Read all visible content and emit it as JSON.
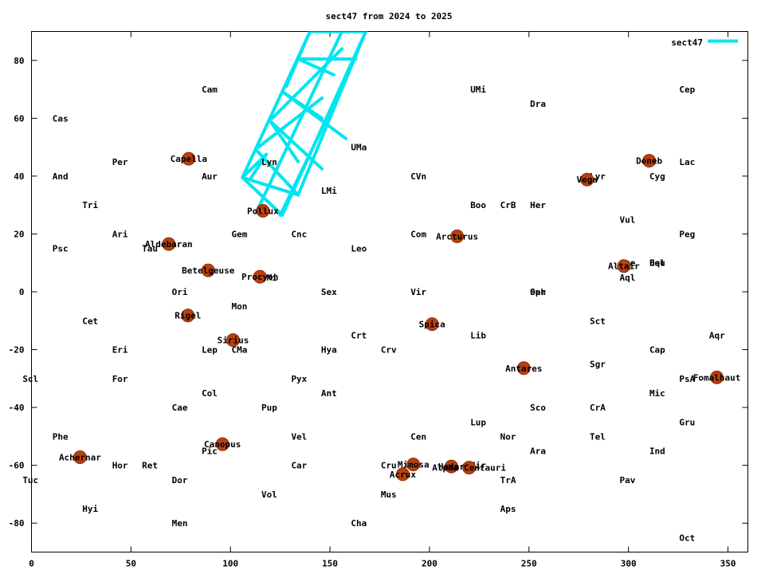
{
  "chart_data": {
    "type": "scatter",
    "title": "sect47 from 2024 to 2025",
    "xlim": [
      0,
      360
    ],
    "ylim": [
      -90,
      90
    ],
    "xticks": [
      0,
      50,
      100,
      150,
      200,
      250,
      300,
      350
    ],
    "yticks": [
      -80,
      -60,
      -40,
      -20,
      0,
      20,
      40,
      60,
      80
    ],
    "grid": false,
    "legend": {
      "position": "top-right",
      "label": "sect47",
      "color": "#00e5ee"
    },
    "series_color": "#00e5ee",
    "star_color": "#b8400e",
    "sect47_path": [
      {
        "x": 106.0,
        "y": 39.5
      },
      {
        "x": 140.0,
        "y": 90.0
      },
      {
        "x": 154.0,
        "y": 90.0
      },
      {
        "x": 168.0,
        "y": 90.0
      },
      {
        "x": 126.0,
        "y": 26.5
      },
      {
        "x": 106.0,
        "y": 39.5
      }
    ],
    "sect47_mesh": [
      [
        [
          106.0,
          39.5
        ],
        [
          118.0,
          47.5
        ]
      ],
      [
        [
          118.0,
          47.5
        ],
        [
          110.0,
          39.0
        ]
      ],
      [
        [
          113.0,
          49.0
        ],
        [
          134.0,
          33.5
        ]
      ],
      [
        [
          120.0,
          59.0
        ],
        [
          146.0,
          42.5
        ]
      ],
      [
        [
          126.5,
          69.0
        ],
        [
          158.0,
          53.0
        ]
      ],
      [
        [
          134.0,
          80.5
        ],
        [
          163.0,
          80.5
        ]
      ],
      [
        [
          114.0,
          50.0
        ],
        [
          146.0,
          67.0
        ]
      ],
      [
        [
          121.0,
          60.0
        ],
        [
          156.0,
          84.0
        ]
      ],
      [
        [
          128.0,
          71.0
        ],
        [
          140.0,
          90.0
        ]
      ],
      [
        [
          125.0,
          26.5
        ],
        [
          150.0,
          62.0
        ]
      ],
      [
        [
          113.0,
          27.5
        ],
        [
          156.0,
          90.0
        ]
      ],
      [
        [
          106.0,
          39.5
        ],
        [
          134.0,
          33.5
        ]
      ],
      [
        [
          134.0,
          33.5
        ],
        [
          168.0,
          90.0
        ]
      ],
      [
        [
          120.0,
          59.0
        ],
        [
          134.0,
          45.0
        ]
      ],
      [
        [
          126.5,
          69.0
        ],
        [
          146.0,
          60.0
        ]
      ],
      [
        [
          134.0,
          80.5
        ],
        [
          152.0,
          75.0
        ]
      ]
    ],
    "stars": [
      {
        "name": "Capella",
        "x": 79,
        "y": 46
      },
      {
        "name": "Aldebaran",
        "x": 69,
        "y": 16.5
      },
      {
        "name": "Betelgeuse",
        "x": 88.8,
        "y": 7.4
      },
      {
        "name": "Rigel",
        "x": 78.6,
        "y": -8.2
      },
      {
        "name": "Sirius",
        "x": 101.3,
        "y": -16.7
      },
      {
        "name": "Procyon",
        "x": 114.8,
        "y": 5.2
      },
      {
        "name": "Pollux",
        "x": 116.3,
        "y": 28
      },
      {
        "name": "Canopus",
        "x": 96,
        "y": -52.7
      },
      {
        "name": "Achernar",
        "x": 24.4,
        "y": -57.2
      },
      {
        "name": "Arcturus",
        "x": 213.9,
        "y": 19.2
      },
      {
        "name": "Spica",
        "x": 201.3,
        "y": -11.2
      },
      {
        "name": "Antares",
        "x": 247.4,
        "y": -26.4
      },
      {
        "name": "Vega",
        "x": 279.2,
        "y": 38.8
      },
      {
        "name": "Deneb",
        "x": 310.4,
        "y": 45.3
      },
      {
        "name": "Altair",
        "x": 297.7,
        "y": 8.9
      },
      {
        "name": "Fomalhaut",
        "x": 344.4,
        "y": -29.6
      },
      {
        "name": "Mimosa",
        "x": 191.9,
        "y": -59.7
      },
      {
        "name": "Acrux",
        "x": 186.6,
        "y": -63.1
      },
      {
        "name": "Hadar",
        "x": 211,
        "y": -60.4
      },
      {
        "name": "Alpha Centauri",
        "x": 219.9,
        "y": -60.8
      }
    ],
    "constellations": [
      {
        "name": "Cas",
        "x": 14.5,
        "y": 60
      },
      {
        "name": "And",
        "x": 14.5,
        "y": 40
      },
      {
        "name": "Tri",
        "x": 29.5,
        "y": 30
      },
      {
        "name": "Psc",
        "x": 14.5,
        "y": 15
      },
      {
        "name": "Per",
        "x": 44.5,
        "y": 45
      },
      {
        "name": "Ari",
        "x": 44.5,
        "y": 20
      },
      {
        "name": "Tau",
        "x": 59.5,
        "y": 15
      },
      {
        "name": "Cet",
        "x": 29.5,
        "y": -10
      },
      {
        "name": "Eri",
        "x": 44.5,
        "y": -20
      },
      {
        "name": "For",
        "x": 44.5,
        "y": -30
      },
      {
        "name": "Scl",
        "x": -0.5,
        "y": -30
      },
      {
        "name": "Phe",
        "x": 14.5,
        "y": -50
      },
      {
        "name": "Tuc",
        "x": -0.5,
        "y": -65
      },
      {
        "name": "Hyi",
        "x": 29.5,
        "y": -75
      },
      {
        "name": "Hor",
        "x": 44.5,
        "y": -60
      },
      {
        "name": "Ret",
        "x": 59.5,
        "y": -60
      },
      {
        "name": "Dor",
        "x": 74.5,
        "y": -65
      },
      {
        "name": "Men",
        "x": 74.5,
        "y": -80
      },
      {
        "name": "Cae",
        "x": 74.5,
        "y": -40
      },
      {
        "name": "Col",
        "x": 89.5,
        "y": -35
      },
      {
        "name": "Pic",
        "x": 89.5,
        "y": -55
      },
      {
        "name": "Lep",
        "x": 89.5,
        "y": -20
      },
      {
        "name": "CMa",
        "x": 104.5,
        "y": -20
      },
      {
        "name": "Ori",
        "x": 74.5,
        "y": 0
      },
      {
        "name": "Mon",
        "x": 104.5,
        "y": -5
      },
      {
        "name": "Gem",
        "x": 104.5,
        "y": 20
      },
      {
        "name": "Aur",
        "x": 89.5,
        "y": 40
      },
      {
        "name": "Cam",
        "x": 89.5,
        "y": 70
      },
      {
        "name": "Lyn",
        "x": 119.5,
        "y": 45
      },
      {
        "name": "Cnc",
        "x": 134.5,
        "y": 20
      },
      {
        "name": "CMi",
        "x": 119.5,
        "y": 5
      },
      {
        "name": "Pup",
        "x": 119.5,
        "y": -40
      },
      {
        "name": "Vel",
        "x": 134.5,
        "y": -50
      },
      {
        "name": "Car",
        "x": 134.5,
        "y": -60
      },
      {
        "name": "Vol",
        "x": 119.5,
        "y": -70
      },
      {
        "name": "Pyx",
        "x": 134.5,
        "y": -30
      },
      {
        "name": "Ant",
        "x": 149.5,
        "y": -35
      },
      {
        "name": "Hya",
        "x": 149.5,
        "y": -20
      },
      {
        "name": "Sex",
        "x": 149.5,
        "y": 0
      },
      {
        "name": "Leo",
        "x": 164.5,
        "y": 15
      },
      {
        "name": "LMi",
        "x": 149.5,
        "y": 35
      },
      {
        "name": "UMa",
        "x": 164.5,
        "y": 50
      },
      {
        "name": "Crt",
        "x": 164.5,
        "y": -15
      },
      {
        "name": "Crv",
        "x": 179.5,
        "y": -20
      },
      {
        "name": "Cha",
        "x": 164.5,
        "y": -80
      },
      {
        "name": "Mus",
        "x": 179.5,
        "y": -70
      },
      {
        "name": "Cru",
        "x": 179.5,
        "y": -60
      },
      {
        "name": "Cen",
        "x": 194.5,
        "y": -50
      },
      {
        "name": "Vir",
        "x": 194.5,
        "y": 0
      },
      {
        "name": "Com",
        "x": 194.5,
        "y": 20
      },
      {
        "name": "CVn",
        "x": 194.5,
        "y": 40
      },
      {
        "name": "Boo",
        "x": 224.5,
        "y": 30
      },
      {
        "name": "CrB",
        "x": 239.5,
        "y": 30
      },
      {
        "name": "UMi",
        "x": 224.5,
        "y": 70
      },
      {
        "name": "Dra",
        "x": 254.5,
        "y": 65
      },
      {
        "name": "Her",
        "x": 254.5,
        "y": 30
      },
      {
        "name": "Lib",
        "x": 224.5,
        "y": -15
      },
      {
        "name": "Lup",
        "x": 224.5,
        "y": -45
      },
      {
        "name": "Cir",
        "x": 224.5,
        "y": -60
      },
      {
        "name": "Nor",
        "x": 239.5,
        "y": -50
      },
      {
        "name": "TrA",
        "x": 239.5,
        "y": -65
      },
      {
        "name": "Aps",
        "x": 239.5,
        "y": -75
      },
      {
        "name": "Ara",
        "x": 254.5,
        "y": -55
      },
      {
        "name": "Sco",
        "x": 254.5,
        "y": -40
      },
      {
        "name": "Oph",
        "x": 254.5,
        "y": 0
      },
      {
        "name": "Ser",
        "x": 254.5,
        "y": 0
      },
      {
        "name": "CrA",
        "x": 284.5,
        "y": -40
      },
      {
        "name": "Tel",
        "x": 284.5,
        "y": -50
      },
      {
        "name": "Sgr",
        "x": 284.5,
        "y": -25
      },
      {
        "name": "Sct",
        "x": 284.5,
        "y": -10
      },
      {
        "name": "Pav",
        "x": 299.5,
        "y": -65
      },
      {
        "name": "Aql",
        "x": 299.5,
        "y": 5
      },
      {
        "name": "Sge",
        "x": 299.5,
        "y": 10
      },
      {
        "name": "Vul",
        "x": 299.5,
        "y": 25
      },
      {
        "name": "Lyr",
        "x": 284.5,
        "y": 40
      },
      {
        "name": "Cyg",
        "x": 314.5,
        "y": 40
      },
      {
        "name": "Del",
        "x": 314.5,
        "y": 10
      },
      {
        "name": "Equ",
        "x": 314.5,
        "y": 10
      },
      {
        "name": "Mic",
        "x": 314.5,
        "y": -35
      },
      {
        "name": "Ind",
        "x": 314.5,
        "y": -55
      },
      {
        "name": "Cap",
        "x": 314.5,
        "y": -20
      },
      {
        "name": "Cep",
        "x": 329.5,
        "y": 70
      },
      {
        "name": "Lac",
        "x": 329.5,
        "y": 45
      },
      {
        "name": "Peg",
        "x": 329.5,
        "y": 20
      },
      {
        "name": "Aqr",
        "x": 344.5,
        "y": -15
      },
      {
        "name": "PsA",
        "x": 329.5,
        "y": -30
      },
      {
        "name": "Gru",
        "x": 329.5,
        "y": -45
      },
      {
        "name": "Oct",
        "x": 329.5,
        "y": -85
      }
    ]
  }
}
